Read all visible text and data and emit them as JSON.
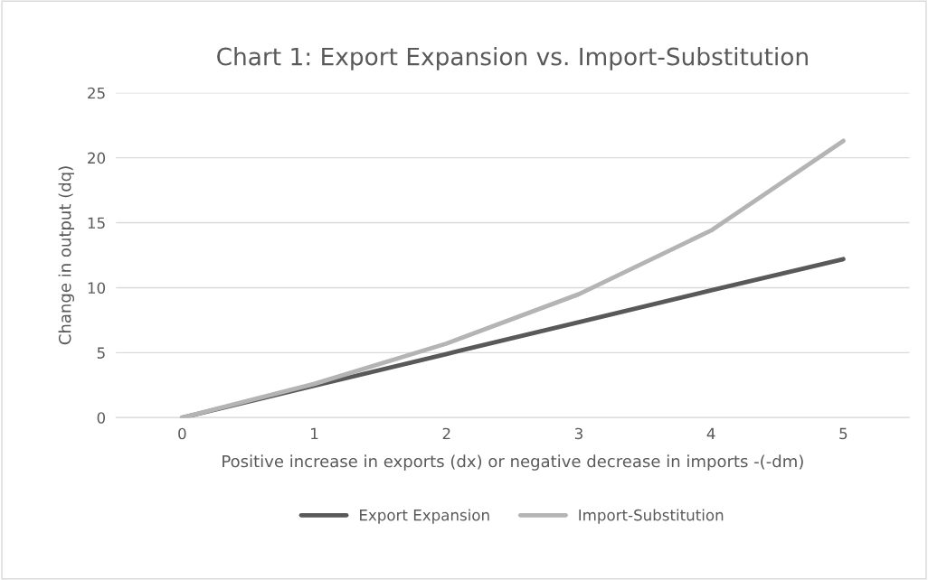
{
  "chart_data": {
    "type": "line",
    "title": "Chart 1: Export Expansion vs. Import-Substitution",
    "xlabel": "Positive increase in exports (dx) or negative decrease in imports -(-dm)",
    "ylabel": "Change in output (dq)",
    "categories": [
      "0",
      "1",
      "2",
      "3",
      "4",
      "5"
    ],
    "series": [
      {
        "name": "Export Expansion",
        "color": "#595959",
        "values": [
          0,
          2.45,
          4.9,
          7.35,
          9.8,
          12.2
        ]
      },
      {
        "name": "Import-Substitution",
        "color": "#b4b4b4",
        "values": [
          0,
          2.6,
          5.7,
          9.5,
          14.4,
          21.3
        ]
      }
    ],
    "ylim": [
      0,
      25
    ],
    "yticks": [
      0,
      5,
      10,
      15,
      20,
      25
    ],
    "grid": "y",
    "legend": "bottom",
    "marker": "none",
    "line_style": "solid"
  }
}
